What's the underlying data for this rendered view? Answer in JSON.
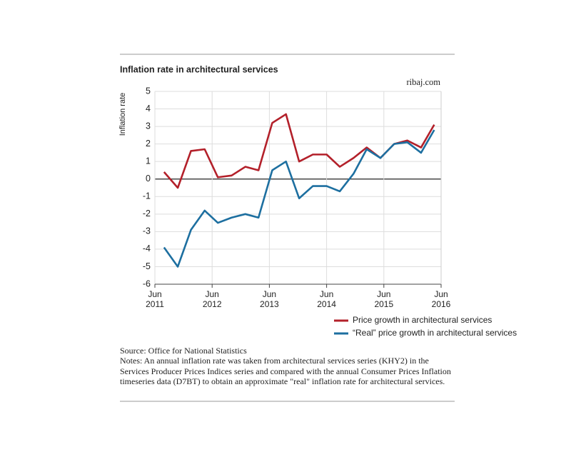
{
  "chart_data": {
    "type": "line",
    "title": "Inflation rate in architectural services",
    "source_site": "ribaj.com",
    "y_label": "Inflation rate",
    "x": [
      2011.66,
      2011.9,
      2012.13,
      2012.37,
      2012.6,
      2012.84,
      2013.08,
      2013.31,
      2013.55,
      2013.79,
      2014.02,
      2014.26,
      2014.5,
      2014.73,
      2014.97,
      2015.2,
      2015.44,
      2015.68,
      2015.91,
      2016.15,
      2016.38
    ],
    "series": [
      {
        "name": "Price growth in architectural services",
        "color": "#b3202a",
        "values": [
          0.4,
          -0.5,
          1.6,
          1.7,
          0.1,
          0.2,
          0.7,
          0.5,
          3.2,
          3.7,
          1.0,
          1.4,
          1.4,
          0.7,
          1.2,
          1.8,
          1.2,
          2.0,
          2.2,
          1.8,
          3.1
        ]
      },
      {
        "name": "“Real” price growth in architectural services",
        "color": "#1d6fa0",
        "values": [
          -3.9,
          -5.0,
          -2.9,
          -1.8,
          -2.5,
          -2.2,
          -2.0,
          -2.2,
          0.5,
          1.0,
          -1.1,
          -0.4,
          -0.4,
          -0.7,
          0.3,
          1.7,
          1.2,
          2.0,
          2.1,
          1.5,
          2.8
        ]
      }
    ],
    "xlim": [
      2011.5,
      2016.5
    ],
    "xticks": [
      {
        "value": 2011.5,
        "label": "Jun 2011"
      },
      {
        "value": 2012.5,
        "label": "Jun 2012"
      },
      {
        "value": 2013.5,
        "label": "Jun 2013"
      },
      {
        "value": 2014.5,
        "label": "Jun 2014"
      },
      {
        "value": 2015.5,
        "label": "Jun 2015"
      },
      {
        "value": 2016.5,
        "label": "Jun 2016"
      }
    ],
    "ylim": [
      -6,
      5
    ],
    "yticks": [
      -6,
      -5,
      -4,
      -3,
      -2,
      -1,
      0,
      1,
      2,
      3,
      4,
      5
    ],
    "grid": true,
    "source": "Source: Office for National Statistics",
    "notes": "Notes: An annual inflation rate was taken from architectural services series (KHY2) in the Services Producer Prices Indices series and compared with the annual Consumer Prices Inflation timeseries data (D7BT) to obtain an approximate \"real\" inflation rate for architectural services."
  }
}
